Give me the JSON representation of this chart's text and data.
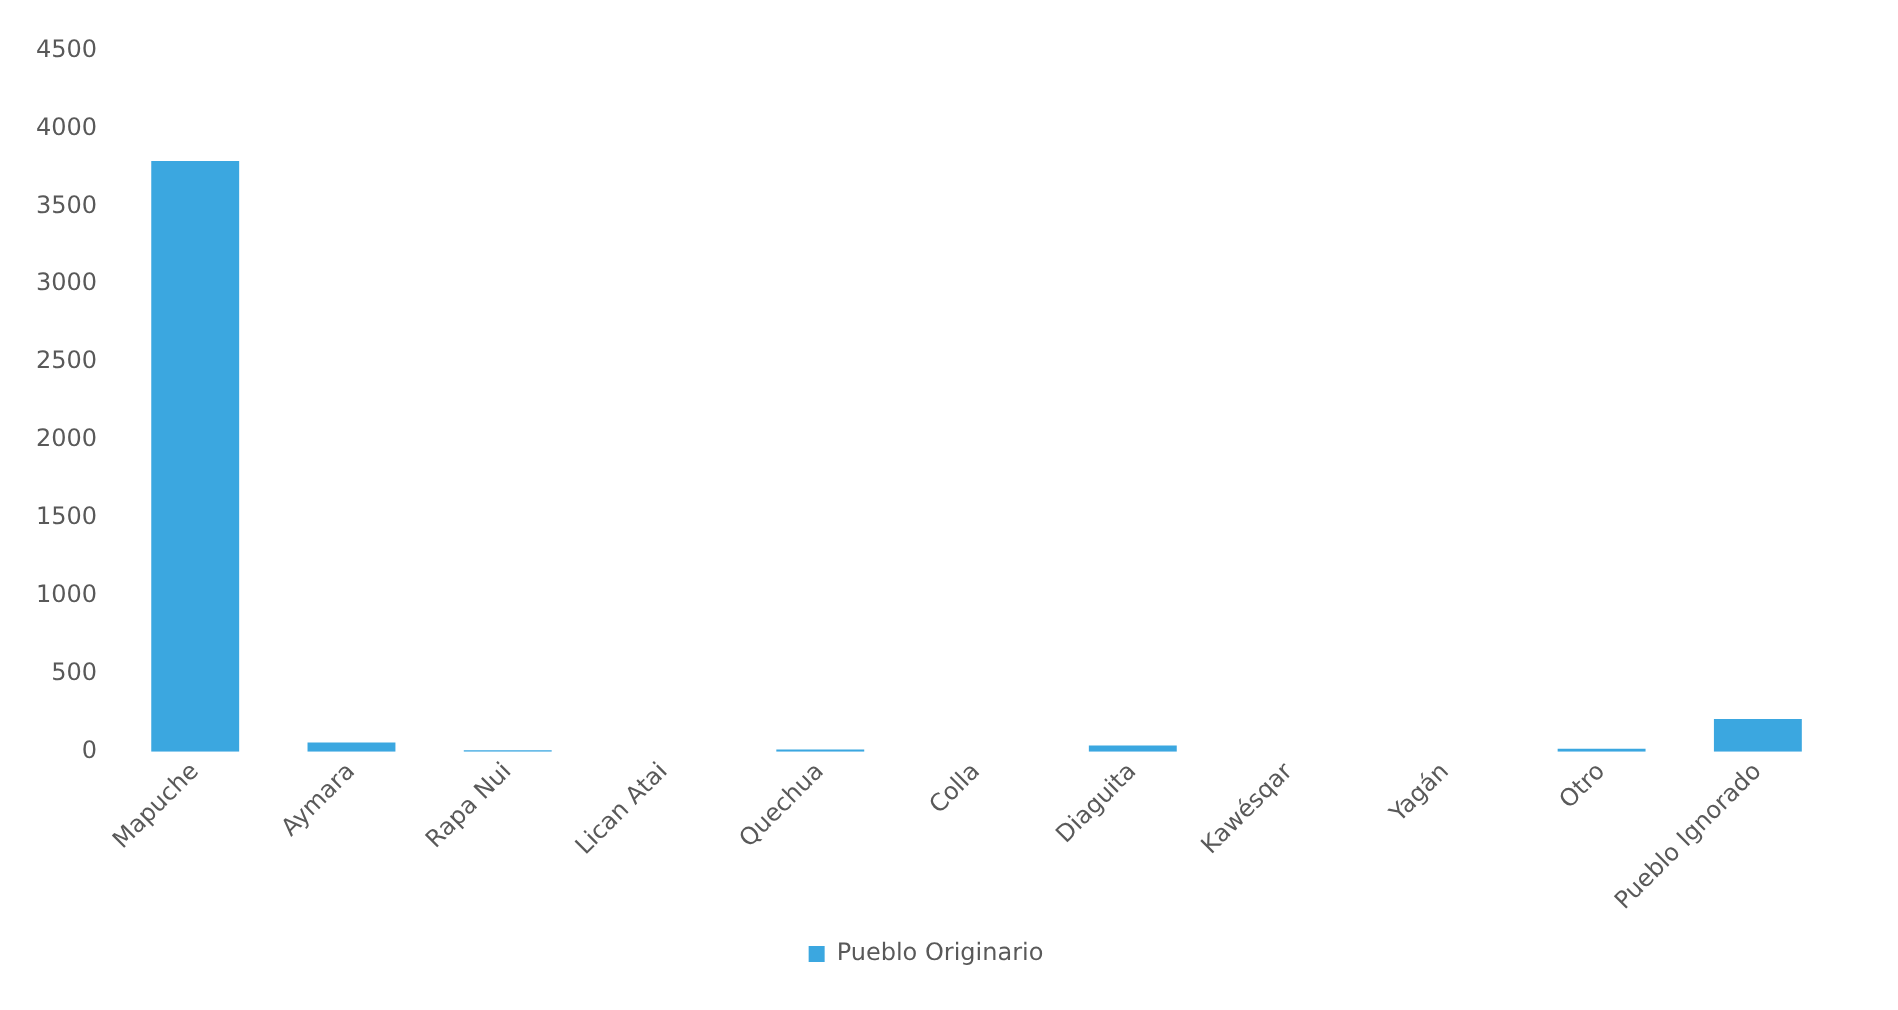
{
  "chart_data": {
    "type": "bar",
    "categories": [
      "Mapuche",
      "Aymara",
      "Rapa Nui",
      "Lican Atai",
      "Quechua",
      "Colla",
      "Diaguita",
      "Kawésqar",
      "Yagán",
      "Otro",
      "Pueblo Ignorado"
    ],
    "series": [
      {
        "name": "Pueblo Originario",
        "color": "#3ba7e0",
        "values": [
          3790,
          60,
          10,
          0,
          15,
          0,
          40,
          0,
          0,
          20,
          210
        ]
      }
    ],
    "ylim": [
      0,
      4500
    ],
    "yticks": [
      0,
      500,
      1000,
      1500,
      2000,
      2500,
      3000,
      3500,
      4000,
      4500
    ],
    "grid": false,
    "legend": "bottom"
  }
}
